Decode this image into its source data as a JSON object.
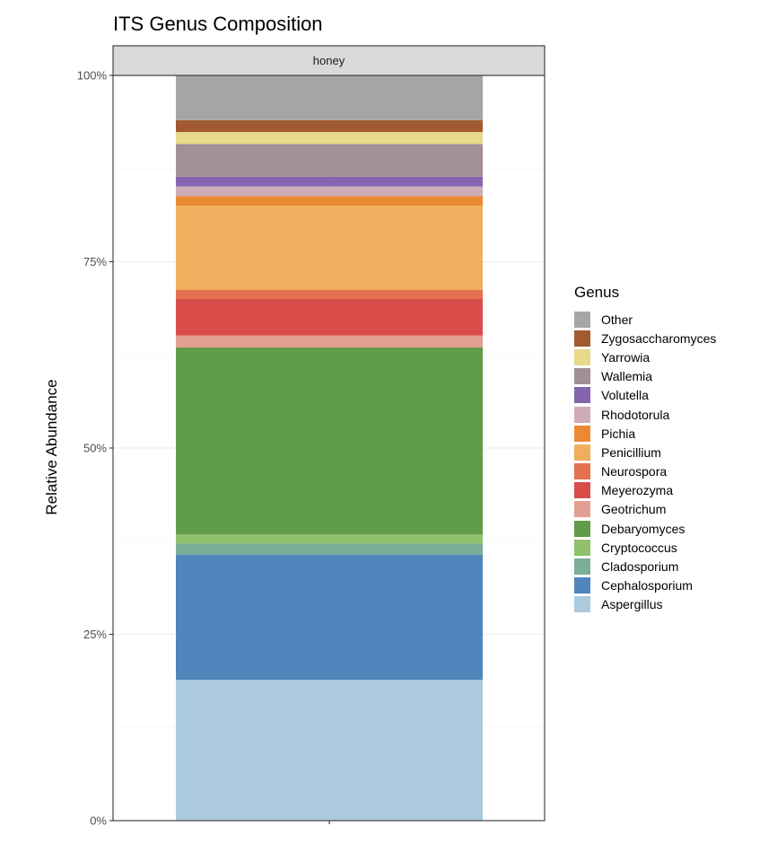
{
  "chart_data": {
    "type": "bar",
    "title": "ITS Genus Composition",
    "xlabel": "",
    "ylabel": "Relative Abundance",
    "facet": "honey",
    "categories": [
      ""
    ],
    "ylim": [
      0,
      1
    ],
    "yticks": [
      "0%",
      "25%",
      "50%",
      "75%",
      "100%"
    ],
    "stacked": true,
    "grid": true,
    "legend_title": "Genus",
    "legend_position": "right",
    "series": [
      {
        "name": "Aspergillus",
        "values": [
          0.189
        ],
        "color": "#abcade"
      },
      {
        "name": "Cephalosporium",
        "values": [
          0.168
        ],
        "color": "#4f86bb"
      },
      {
        "name": "Cladosporium",
        "values": [
          0.015
        ],
        "color": "#7aae96"
      },
      {
        "name": "Cryptococcus",
        "values": [
          0.012
        ],
        "color": "#8fc16e"
      },
      {
        "name": "Debaryomyces",
        "values": [
          0.251
        ],
        "color": "#619d48"
      },
      {
        "name": "Geotrichum",
        "values": [
          0.016
        ],
        "color": "#e39e92"
      },
      {
        "name": "Meyerozyma",
        "values": [
          0.049
        ],
        "color": "#d84d4a"
      },
      {
        "name": "Neurospora",
        "values": [
          0.012
        ],
        "color": "#e3704f"
      },
      {
        "name": "Penicillium",
        "values": [
          0.113
        ],
        "color": "#f0af5e"
      },
      {
        "name": "Pichia",
        "values": [
          0.013
        ],
        "color": "#ec8a34"
      },
      {
        "name": "Rhodotorula",
        "values": [
          0.013
        ],
        "color": "#cfadb8"
      },
      {
        "name": "Volutella",
        "values": [
          0.013
        ],
        "color": "#8565ad"
      },
      {
        "name": "Wallemia",
        "values": [
          0.044
        ],
        "color": "#a38f97"
      },
      {
        "name": "Yarrowia",
        "values": [
          0.016
        ],
        "color": "#e8d98b"
      },
      {
        "name": "Zygosaccharomyces",
        "values": [
          0.016
        ],
        "color": "#a25a30"
      },
      {
        "name": "Other",
        "values": [
          0.062
        ],
        "color": "#a5a5a5"
      }
    ]
  }
}
